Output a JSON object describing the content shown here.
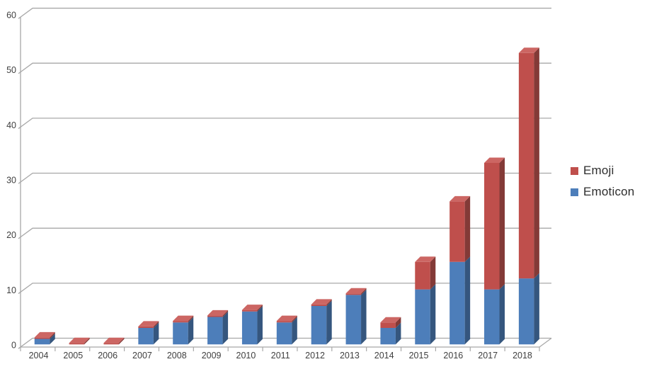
{
  "page": {
    "background": "#FFFFFF"
  },
  "legend": {
    "position": "right",
    "items": [
      {
        "label": "Emoji",
        "color": "#BF4F4C"
      },
      {
        "label": "Emoticon",
        "color": "#4D7EBA"
      }
    ]
  },
  "chart_data": {
    "type": "bar",
    "variant": "3d-stacked-column",
    "title": "",
    "xlabel": "",
    "ylabel": "",
    "categories": [
      "2004",
      "2005",
      "2006",
      "2007",
      "2008",
      "2009",
      "2010",
      "2011",
      "2012",
      "2013",
      "2014",
      "2015",
      "2016",
      "2017",
      "2018"
    ],
    "series": [
      {
        "name": "Emoticon",
        "color_front": "#4D7EBA",
        "color_side": "#35567E",
        "color_top": "#6E97C6",
        "values": [
          1,
          0,
          0,
          3,
          4,
          5,
          6,
          4,
          7,
          9,
          3,
          10,
          15,
          10,
          12
        ]
      },
      {
        "name": "Emoji",
        "color_front": "#BF4F4C",
        "color_side": "#833A37",
        "color_top": "#CC6663",
        "values": [
          0,
          0,
          0,
          0,
          0,
          0,
          0,
          0,
          0,
          0,
          1,
          5,
          11,
          23,
          41
        ]
      }
    ],
    "stacked": true,
    "ylim": [
      0,
      60
    ],
    "yticks": [
      0,
      10,
      20,
      30,
      40,
      50,
      60
    ],
    "grid": true,
    "legend_position": "right",
    "gridline_color": "#A8A8A8",
    "axis_color": "#A8A8A8",
    "label_color": "#3F3F3F",
    "tick_label_font_px": 12
  }
}
